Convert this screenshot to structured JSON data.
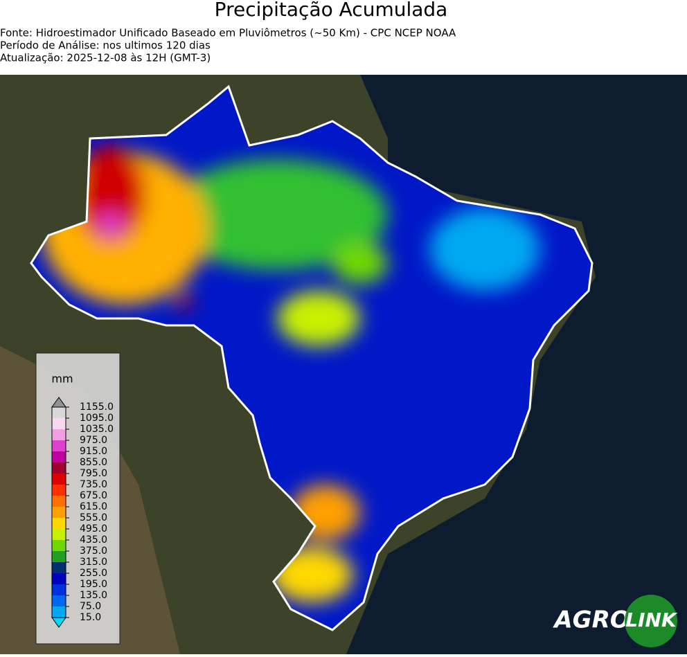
{
  "header": {
    "title": "Precipitação Acumulada",
    "lines": [
      "Fonte: Hidroestimador Unificado Baseado em Pluviômetros (~50 Km) - CPC NCEP NOAA",
      "Período de Análise: nos ultimos 120 dias",
      "Atualização: 2025-12-08 às 12H (GMT-3)"
    ]
  },
  "legend": {
    "unit": "mm",
    "ticks": [
      {
        "value": 15,
        "label": "15.0"
      },
      {
        "value": 75,
        "label": "75.0"
      },
      {
        "value": 135,
        "label": "135.0"
      },
      {
        "value": 195,
        "label": "195.0"
      },
      {
        "value": 255,
        "label": "255.0"
      },
      {
        "value": 315,
        "label": "315.0"
      },
      {
        "value": 375,
        "label": "375.0"
      },
      {
        "value": 435,
        "label": "435.0"
      },
      {
        "value": 495,
        "label": "495.0"
      },
      {
        "value": 555,
        "label": "555.0"
      },
      {
        "value": 615,
        "label": "615.0"
      },
      {
        "value": 675,
        "label": "675.0"
      },
      {
        "value": 735,
        "label": "735.0"
      },
      {
        "value": 795,
        "label": "795.0"
      },
      {
        "value": 855,
        "label": "855.0"
      },
      {
        "value": 915,
        "label": "915.0"
      },
      {
        "value": 975,
        "label": "975.0"
      },
      {
        "value": 1035,
        "label": "1035.0"
      },
      {
        "value": 1095,
        "label": "1095.0"
      },
      {
        "value": 1155,
        "label": "1155.0"
      }
    ],
    "colors": [
      "#00a8f0",
      "#0068f0",
      "#0030e0",
      "#0000c0",
      "#003070",
      "#20a020",
      "#70d800",
      "#c8f000",
      "#ffd800",
      "#ffa000",
      "#ff7000",
      "#ff3000",
      "#e00000",
      "#a00030",
      "#c000a0",
      "#e040d0",
      "#f0a0e0",
      "#f8d8f0",
      "#d8d8d8"
    ],
    "under_color": "#00d8ff",
    "over_color": "#909090"
  },
  "logo": {
    "left": "AGRO",
    "right": "LINK"
  }
}
